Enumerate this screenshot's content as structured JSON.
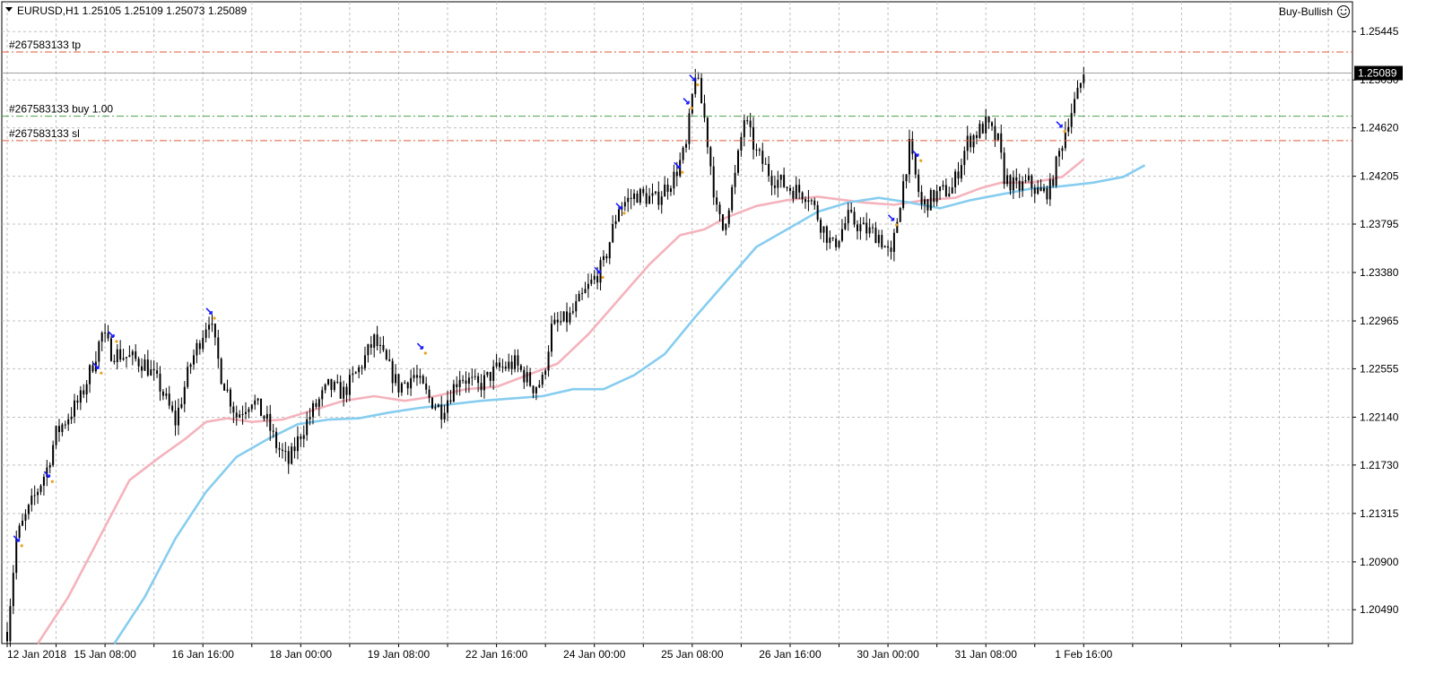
{
  "window": {
    "symbol_line": "EURUSD,H1  1.25105 1.25109 1.25073 1.25089",
    "indicator_label": "Buy-Bullish",
    "indicator_icon": "smiley-icon"
  },
  "colors": {
    "background": "#ffffff",
    "grid": "#c0c0c0",
    "candle": "#000000",
    "ma_fast": "#f4b3bd",
    "ma_slow": "#87cdef",
    "tp_sl_line": "#e05a3a",
    "entry_line": "#4ea04e",
    "trade_arrow": "#1a1aff",
    "trade_close": "#e8a020",
    "price_tag_bg": "#000000",
    "price_tag_text": "#ffffff"
  },
  "chart_data": {
    "type": "candlestick",
    "symbol": "EURUSD",
    "timeframe": "H1",
    "ylim": [
      1.202,
      1.257
    ],
    "y_ticks": [
      "1.25445",
      "1.25030",
      "1.24620",
      "1.24205",
      "1.23795",
      "1.23380",
      "1.22965",
      "1.22555",
      "1.22140",
      "1.21730",
      "1.21315",
      "1.20900",
      "1.20490"
    ],
    "x_tick_labels": [
      "12 Jan 2018",
      "15 Jan 08:00",
      "16 Jan 16:00",
      "18 Jan 00:00",
      "19 Jan 08:00",
      "22 Jan 16:00",
      "24 Jan 00:00",
      "25 Jan 08:00",
      "26 Jan 16:00",
      "30 Jan 00:00",
      "31 Jan 08:00",
      "1 Feb 16:00"
    ],
    "x_tick_index": [
      0,
      32,
      64,
      96,
      128,
      160,
      192,
      224,
      256,
      288,
      320,
      352
    ],
    "bar_count": 352,
    "current_price": "1.25089",
    "current_price_value": 1.25089,
    "price_path": [
      [
        0,
        1.203
      ],
      [
        3,
        1.211
      ],
      [
        8,
        1.214
      ],
      [
        13,
        1.217
      ],
      [
        16,
        1.22
      ],
      [
        20,
        1.2215
      ],
      [
        24,
        1.223
      ],
      [
        28,
        1.226
      ],
      [
        31,
        1.2285
      ],
      [
        34,
        1.227
      ],
      [
        40,
        1.2265
      ],
      [
        45,
        1.226
      ],
      [
        50,
        1.224
      ],
      [
        55,
        1.221
      ],
      [
        60,
        1.226
      ],
      [
        66,
        1.23
      ],
      [
        70,
        1.225
      ],
      [
        75,
        1.2215
      ],
      [
        80,
        1.223
      ],
      [
        85,
        1.221
      ],
      [
        88,
        1.219
      ],
      [
        92,
        1.2175
      ],
      [
        96,
        1.22
      ],
      [
        100,
        1.222
      ],
      [
        105,
        1.224
      ],
      [
        110,
        1.2235
      ],
      [
        115,
        1.2255
      ],
      [
        120,
        1.228
      ],
      [
        124,
        1.226
      ],
      [
        128,
        1.224
      ],
      [
        133,
        1.225
      ],
      [
        138,
        1.223
      ],
      [
        142,
        1.222
      ],
      [
        148,
        1.225
      ],
      [
        154,
        1.224
      ],
      [
        160,
        1.2255
      ],
      [
        166,
        1.226
      ],
      [
        172,
        1.224
      ],
      [
        175,
        1.2245
      ],
      [
        178,
        1.229
      ],
      [
        184,
        1.23
      ],
      [
        190,
        1.2325
      ],
      [
        195,
        1.2345
      ],
      [
        200,
        1.2395
      ],
      [
        206,
        1.2405
      ],
      [
        212,
        1.24
      ],
      [
        218,
        1.242
      ],
      [
        222,
        1.2445
      ],
      [
        225,
        1.251
      ],
      [
        228,
        1.247
      ],
      [
        232,
        1.239
      ],
      [
        234,
        1.2375
      ],
      [
        238,
        1.242
      ],
      [
        241,
        1.247
      ],
      [
        245,
        1.244
      ],
      [
        250,
        1.242
      ],
      [
        256,
        1.241
      ],
      [
        262,
        1.2405
      ],
      [
        266,
        1.238
      ],
      [
        270,
        1.236
      ],
      [
        275,
        1.2385
      ],
      [
        280,
        1.2375
      ],
      [
        285,
        1.237
      ],
      [
        289,
        1.235
      ],
      [
        292,
        1.24
      ],
      [
        295,
        1.2445
      ],
      [
        299,
        1.2395
      ],
      [
        304,
        1.2405
      ],
      [
        309,
        1.241
      ],
      [
        314,
        1.245
      ],
      [
        320,
        1.2465
      ],
      [
        324,
        1.245
      ],
      [
        326,
        1.242
      ],
      [
        330,
        1.241
      ],
      [
        334,
        1.2415
      ],
      [
        338,
        1.2405
      ],
      [
        341,
        1.241
      ],
      [
        344,
        1.244
      ],
      [
        347,
        1.247
      ],
      [
        350,
        1.249
      ],
      [
        352,
        1.251
      ]
    ],
    "ma_fast": [
      [
        10,
        1.202
      ],
      [
        20,
        1.206
      ],
      [
        30,
        1.211
      ],
      [
        40,
        1.216
      ],
      [
        50,
        1.218
      ],
      [
        58,
        1.2195
      ],
      [
        65,
        1.221
      ],
      [
        72,
        1.2213
      ],
      [
        80,
        1.221
      ],
      [
        90,
        1.2212
      ],
      [
        100,
        1.222
      ],
      [
        110,
        1.2228
      ],
      [
        120,
        1.2232
      ],
      [
        130,
        1.2228
      ],
      [
        140,
        1.2232
      ],
      [
        150,
        1.2238
      ],
      [
        160,
        1.224
      ],
      [
        170,
        1.225
      ],
      [
        180,
        1.226
      ],
      [
        190,
        1.2285
      ],
      [
        200,
        1.2315
      ],
      [
        210,
        1.2345
      ],
      [
        220,
        1.237
      ],
      [
        228,
        1.2375
      ],
      [
        235,
        1.2385
      ],
      [
        245,
        1.2395
      ],
      [
        255,
        1.24
      ],
      [
        265,
        1.2403
      ],
      [
        280,
        1.2398
      ],
      [
        290,
        1.2396
      ],
      [
        300,
        1.24
      ],
      [
        310,
        1.2402
      ],
      [
        318,
        1.241
      ],
      [
        325,
        1.2415
      ],
      [
        335,
        1.2415
      ],
      [
        345,
        1.242
      ],
      [
        352,
        1.2435
      ]
    ],
    "ma_slow": [
      [
        35,
        1.202
      ],
      [
        45,
        1.206
      ],
      [
        55,
        1.211
      ],
      [
        65,
        1.215
      ],
      [
        75,
        1.218
      ],
      [
        85,
        1.2195
      ],
      [
        95,
        1.2208
      ],
      [
        105,
        1.2212
      ],
      [
        115,
        1.2213
      ],
      [
        125,
        1.2218
      ],
      [
        135,
        1.2222
      ],
      [
        145,
        1.2225
      ],
      [
        155,
        1.2228
      ],
      [
        165,
        1.223
      ],
      [
        175,
        1.2232
      ],
      [
        185,
        1.2238
      ],
      [
        195,
        1.2238
      ],
      [
        205,
        1.225
      ],
      [
        215,
        1.2268
      ],
      [
        225,
        1.23
      ],
      [
        235,
        1.233
      ],
      [
        245,
        1.236
      ],
      [
        255,
        1.2375
      ],
      [
        265,
        1.239
      ],
      [
        275,
        1.2398
      ],
      [
        285,
        1.2402
      ],
      [
        295,
        1.2398
      ],
      [
        305,
        1.2393
      ],
      [
        315,
        1.24
      ],
      [
        325,
        1.2405
      ],
      [
        335,
        1.241
      ],
      [
        345,
        1.2412
      ],
      [
        355,
        1.2415
      ],
      [
        365,
        1.242
      ],
      [
        372,
        1.243
      ]
    ],
    "annotations": [
      {
        "label": "#267583133 tp",
        "price": 1.2527,
        "kind": "tp"
      },
      {
        "label": "#267583133 buy 1.00",
        "price": 1.2472,
        "kind": "entry"
      },
      {
        "label": "#267583133 sl",
        "price": 1.2451,
        "kind": "sl"
      }
    ],
    "trade_arrows": [
      [
        3,
        1.211
      ],
      [
        13,
        1.2165
      ],
      [
        29,
        1.2258
      ],
      [
        34,
        1.2285
      ],
      [
        66,
        1.2305
      ],
      [
        135,
        1.2275
      ],
      [
        193,
        1.234
      ],
      [
        200,
        1.2395
      ],
      [
        219,
        1.243
      ],
      [
        222,
        1.2485
      ],
      [
        224,
        1.2505
      ],
      [
        289,
        1.2385
      ],
      [
        297,
        1.244
      ],
      [
        344,
        1.2465
      ]
    ]
  }
}
